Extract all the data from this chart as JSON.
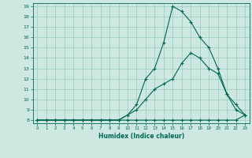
{
  "xlabel": "Humidex (Indice chaleur)",
  "bg_color": "#cce8e0",
  "grid_color": "#99ccbb",
  "line_color": "#006655",
  "xlim": [
    -0.5,
    23.5
  ],
  "ylim": [
    7.7,
    19.3
  ],
  "xticks": [
    0,
    1,
    2,
    3,
    4,
    5,
    6,
    7,
    8,
    9,
    10,
    11,
    12,
    13,
    14,
    15,
    16,
    17,
    18,
    19,
    20,
    21,
    22,
    23
  ],
  "yticks": [
    8,
    9,
    10,
    11,
    12,
    13,
    14,
    15,
    16,
    17,
    18,
    19
  ],
  "line1_x": [
    0,
    1,
    2,
    3,
    4,
    5,
    6,
    7,
    8,
    9,
    10,
    11,
    12,
    13,
    14,
    15,
    16,
    17,
    18,
    19,
    20,
    21,
    22,
    23
  ],
  "line1_y": [
    8.0,
    8.0,
    8.0,
    8.0,
    8.0,
    8.0,
    8.0,
    8.0,
    8.0,
    8.0,
    8.0,
    8.0,
    8.0,
    8.0,
    8.0,
    8.0,
    8.0,
    8.0,
    8.0,
    8.0,
    8.0,
    8.0,
    8.0,
    8.5
  ],
  "line2_x": [
    0,
    1,
    2,
    3,
    4,
    5,
    6,
    7,
    8,
    9,
    10,
    11,
    12,
    13,
    14,
    15,
    16,
    17,
    18,
    19,
    20,
    21,
    22,
    23
  ],
  "line2_y": [
    8.0,
    8.0,
    8.0,
    8.0,
    8.0,
    8.0,
    8.0,
    8.0,
    8.0,
    8.0,
    8.5,
    9.0,
    10.0,
    11.0,
    11.5,
    12.0,
    13.5,
    14.5,
    14.0,
    13.0,
    12.5,
    10.5,
    9.0,
    8.5
  ],
  "line3_x": [
    0,
    1,
    2,
    3,
    4,
    5,
    6,
    7,
    8,
    9,
    10,
    11,
    12,
    13,
    14,
    15,
    16,
    17,
    18,
    19,
    20,
    21,
    22,
    23
  ],
  "line3_y": [
    8.0,
    8.0,
    8.0,
    8.0,
    8.0,
    8.0,
    8.0,
    8.0,
    8.0,
    8.0,
    8.5,
    9.5,
    12.0,
    13.0,
    15.5,
    19.0,
    18.5,
    17.5,
    16.0,
    15.0,
    13.0,
    10.5,
    9.5,
    8.5
  ]
}
